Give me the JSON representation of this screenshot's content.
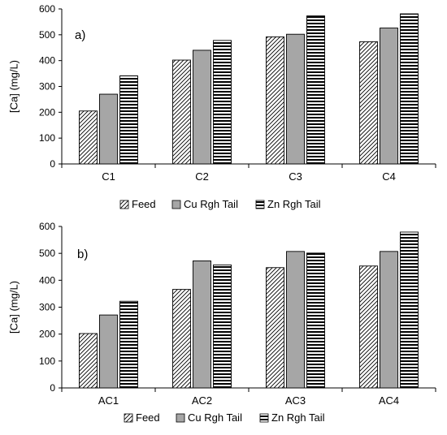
{
  "chart_data": [
    {
      "type": "bar",
      "panel_label": "a)",
      "ylabel": "[Ca] (mg/L)",
      "xlabel": "",
      "ylim": [
        0,
        600
      ],
      "yticks": [
        0,
        100,
        200,
        300,
        400,
        500,
        600
      ],
      "grid": false,
      "legend_position": "bottom",
      "categories": [
        "C1",
        "C2",
        "C3",
        "C4"
      ],
      "series": [
        {
          "name": "Feed",
          "pattern": "diagonal-hatch",
          "values": [
            205,
            402,
            492,
            473
          ]
        },
        {
          "name": "Cu Rgh Tail",
          "pattern": "solid-gray",
          "values": [
            270,
            440,
            502,
            526
          ]
        },
        {
          "name": "Zn Rgh Tail",
          "pattern": "horizontal-stripes",
          "values": [
            341,
            478,
            573,
            581
          ]
        }
      ]
    },
    {
      "type": "bar",
      "panel_label": "b)",
      "ylabel": "[Ca] (mg/L)",
      "xlabel": "",
      "ylim": [
        0,
        600
      ],
      "yticks": [
        0,
        100,
        200,
        300,
        400,
        500,
        600
      ],
      "grid": false,
      "legend_position": "bottom",
      "categories": [
        "AC1",
        "AC2",
        "AC3",
        "AC4"
      ],
      "series": [
        {
          "name": "Feed",
          "pattern": "diagonal-hatch",
          "values": [
            202,
            366,
            447,
            453
          ]
        },
        {
          "name": "Cu Rgh Tail",
          "pattern": "solid-gray",
          "values": [
            271,
            472,
            507,
            507
          ]
        },
        {
          "name": "Zn Rgh Tail",
          "pattern": "horizontal-stripes",
          "values": [
            322,
            457,
            501,
            579
          ]
        }
      ]
    }
  ],
  "colors": {
    "bar_fill": "#a6a6a6",
    "hatch": "#000000",
    "axis": "#000000"
  }
}
